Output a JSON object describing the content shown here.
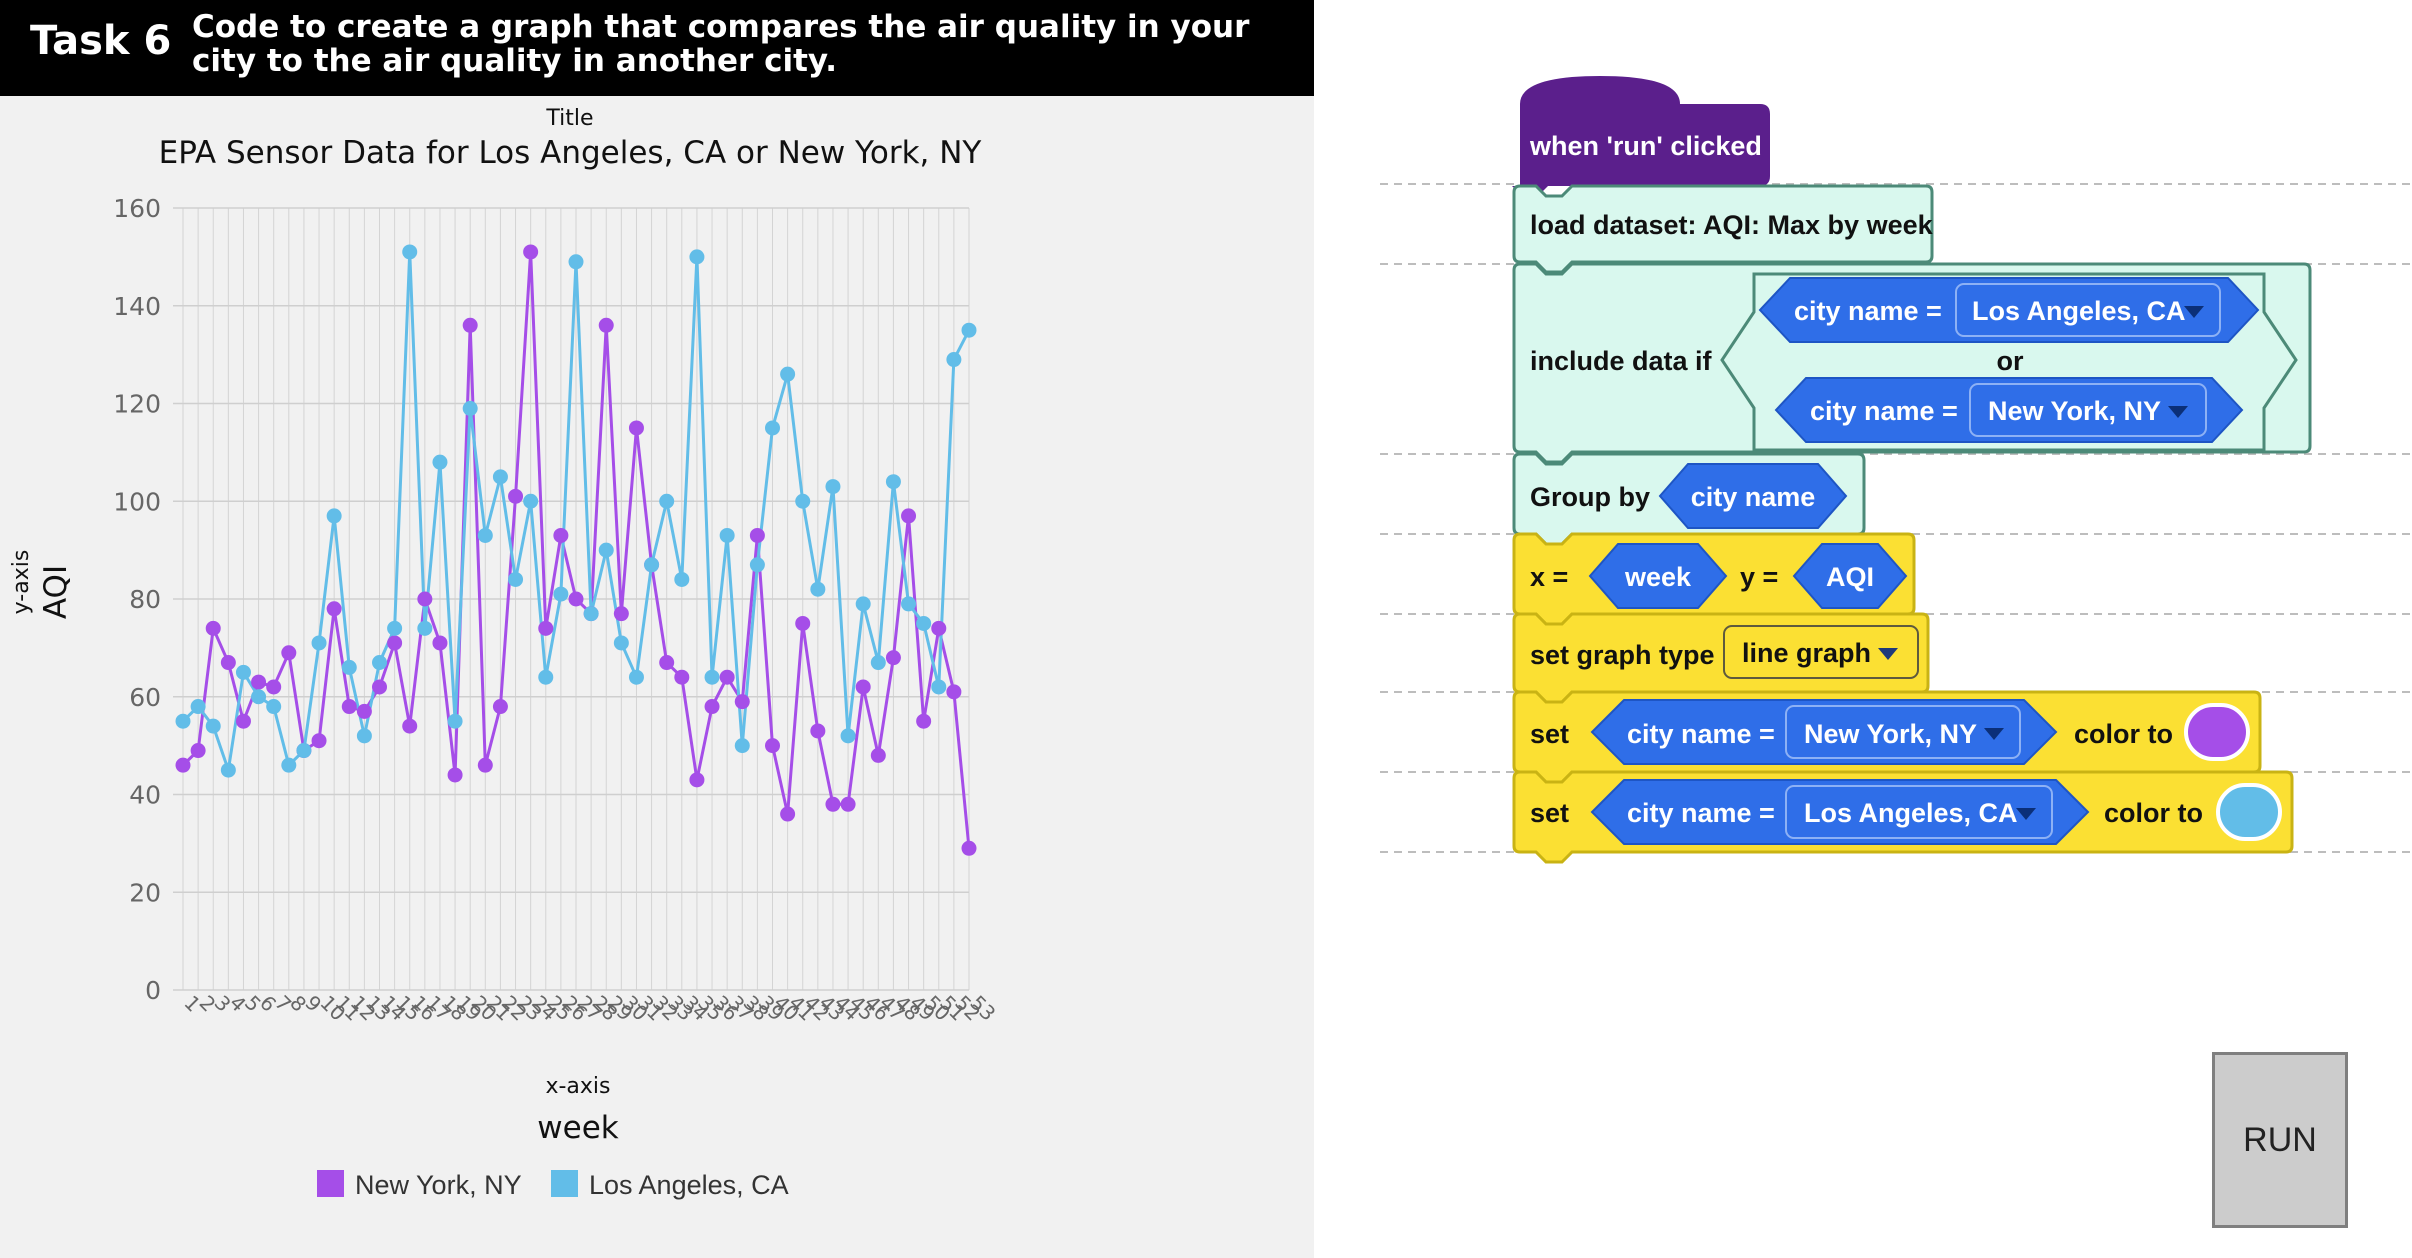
{
  "task": {
    "label": "Task 6",
    "text": "Code to create a graph that compares the air quality in your city to the air quality in another city."
  },
  "chart_data": {
    "type": "line",
    "title_caption": "Title",
    "title": "EPA Sensor Data for Los Angeles, CA or New York, NY",
    "xaxis_caption": "x-axis",
    "xlabel": "week",
    "yaxis_caption": "y-axis",
    "ylabel": "AQI",
    "ylim": [
      0,
      160
    ],
    "yticks": [
      0,
      20,
      40,
      60,
      80,
      100,
      120,
      140,
      160
    ],
    "grid": true,
    "legend_position": "bottom",
    "x": [
      1,
      2,
      3,
      4,
      5,
      6,
      7,
      8,
      9,
      10,
      11,
      12,
      13,
      14,
      15,
      16,
      17,
      18,
      19,
      20,
      21,
      22,
      23,
      24,
      25,
      26,
      27,
      28,
      29,
      30,
      31,
      32,
      33,
      34,
      35,
      36,
      37,
      38,
      39,
      40,
      41,
      42,
      43,
      44,
      45,
      46,
      47,
      48,
      49,
      50,
      51,
      52,
      53
    ],
    "series": [
      {
        "name": "New York, NY",
        "color": "#a54ee8",
        "values": [
          46,
          49,
          74,
          67,
          55,
          63,
          62,
          69,
          49,
          51,
          78,
          58,
          57,
          62,
          71,
          54,
          80,
          71,
          44,
          136,
          46,
          58,
          101,
          151,
          74,
          93,
          80,
          77,
          136,
          77,
          115,
          87,
          67,
          64,
          43,
          58,
          64,
          59,
          93,
          50,
          36,
          75,
          53,
          38,
          38,
          62,
          48,
          68,
          97,
          55,
          74,
          61,
          29
        ]
      },
      {
        "name": "Los Angeles, CA",
        "color": "#62bde8",
        "values": [
          55,
          58,
          54,
          45,
          65,
          60,
          58,
          46,
          49,
          71,
          97,
          66,
          52,
          67,
          74,
          151,
          74,
          108,
          55,
          119,
          93,
          105,
          84,
          100,
          64,
          81,
          149,
          77,
          90,
          71,
          64,
          87,
          100,
          84,
          150,
          64,
          93,
          50,
          87,
          115,
          126,
          100,
          82,
          103,
          52,
          79,
          67,
          104,
          79,
          75,
          62,
          129,
          135
        ]
      }
    ]
  },
  "blocks": {
    "hat": "when 'run' clicked",
    "load": "load dataset: AQI: Max by week",
    "include": "include data if",
    "cond1_label": "city name =",
    "cond1_value": "Los Angeles, CA",
    "or_label": "or",
    "cond2_label": "city name =",
    "cond2_value": "New York, NY",
    "group_label": "Group by",
    "group_value": "city name",
    "x_label": "x =",
    "x_value": "week",
    "y_label": "y =",
    "y_value": "AQI",
    "graph_label": "set graph type",
    "graph_value": "line graph",
    "set1_label": "set",
    "set1_cond_label": "city name =",
    "set1_cond_value": "New York, NY",
    "set1_color_label": "color to",
    "set1_color": "#a54ee8",
    "set2_label": "set",
    "set2_cond_label": "city name =",
    "set2_cond_value": "Los Angeles, CA",
    "set2_color_label": "color to",
    "set2_color": "#62bde8",
    "colors": {
      "hat": "#5b1f8c",
      "data": "#d9f8ee",
      "data_stroke": "#4c8a78",
      "pill": "#2f6ee8",
      "viz": "#fbe033",
      "viz_stroke": "#c9b314"
    }
  },
  "run_label": "RUN"
}
